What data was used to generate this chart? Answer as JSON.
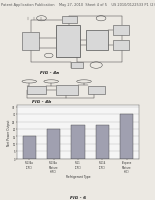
{
  "background_color": "#ece9e3",
  "header_text": "Patent Application Publication    May 27, 2010  Sheet 4 of 5    US 2010/0122533 P1 (2)",
  "header_fontsize": 2.5,
  "fig4a_label": "FIG - 4a",
  "fig4b_label": "FIG - 4b",
  "fig6_label": "FIG - 6",
  "bar_values": [
    15,
    20,
    23,
    23,
    30
  ],
  "bar_color": "#a0a0b0",
  "bar_xlabels": [
    "R-134a\n(CFC)",
    "R-134a\nMixture\n(HFC)",
    "R-11\n(CFC)",
    "R-114\n(CFC)",
    "Propane\nMixture\n(HC)"
  ],
  "bar_ylabel": "Net Power Output",
  "bar_xlabel": "Refrigerant Type",
  "bar_yticks": [
    0,
    5,
    10,
    15,
    20,
    25,
    30,
    35
  ],
  "ylim": [
    0,
    36
  ],
  "chart_bg": "#f5f5f5",
  "grid_color": "#bbbbbb",
  "line_color": "#444444",
  "box_face": "#d8d8d8",
  "box_edge": "#555555"
}
